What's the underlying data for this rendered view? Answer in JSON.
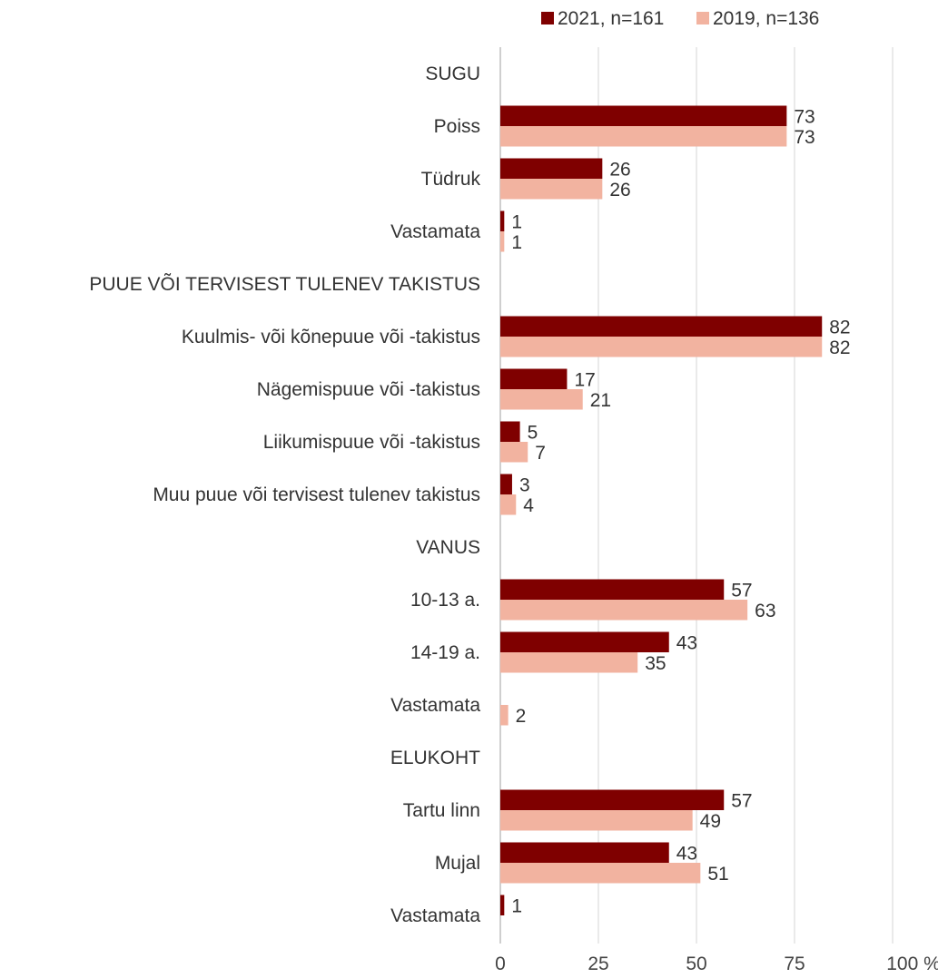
{
  "chart_data": {
    "type": "bar",
    "orientation": "horizontal",
    "unit": "%",
    "xlim": [
      0,
      100
    ],
    "x_ticks": [
      "0",
      "25",
      "50",
      "75",
      "100"
    ],
    "legend_position": "top-right",
    "grid": true,
    "series": [
      {
        "name": "2021, n=161",
        "color": "#7f0000"
      },
      {
        "name": "2019, n=136",
        "color": "#f2b3a0"
      }
    ],
    "rows": [
      {
        "type": "header",
        "label": "SUGU"
      },
      {
        "type": "item",
        "label": "Poiss",
        "values": [
          73,
          73
        ]
      },
      {
        "type": "item",
        "label": "Tüdruk",
        "values": [
          26,
          26
        ]
      },
      {
        "type": "item",
        "label": "Vastamata",
        "values": [
          1,
          1
        ]
      },
      {
        "type": "header",
        "label": "PUUE VÕI TERVISEST TULENEV TAKISTUS"
      },
      {
        "type": "item",
        "label": "Kuulmis- või kõnepuue või -takistus",
        "values": [
          82,
          82
        ]
      },
      {
        "type": "item",
        "label": "Nägemispuue või -takistus",
        "values": [
          17,
          21
        ]
      },
      {
        "type": "item",
        "label": "Liikumispuue või -takistus",
        "values": [
          5,
          7
        ]
      },
      {
        "type": "item",
        "label": "Muu puue või tervisest tulenev takistus",
        "values": [
          3,
          4
        ]
      },
      {
        "type": "header",
        "label": "VANUS"
      },
      {
        "type": "item",
        "label": "10-13 a.",
        "values": [
          57,
          63
        ]
      },
      {
        "type": "item",
        "label": "14-19 a.",
        "values": [
          43,
          35
        ]
      },
      {
        "type": "item",
        "label": "Vastamata",
        "values": [
          null,
          2
        ]
      },
      {
        "type": "header",
        "label": "ELUKOHT"
      },
      {
        "type": "item",
        "label": "Tartu linn",
        "values": [
          57,
          49
        ]
      },
      {
        "type": "item",
        "label": "Mujal",
        "values": [
          43,
          51
        ]
      },
      {
        "type": "item",
        "label": "Vastamata",
        "values": [
          1,
          null
        ]
      }
    ]
  }
}
